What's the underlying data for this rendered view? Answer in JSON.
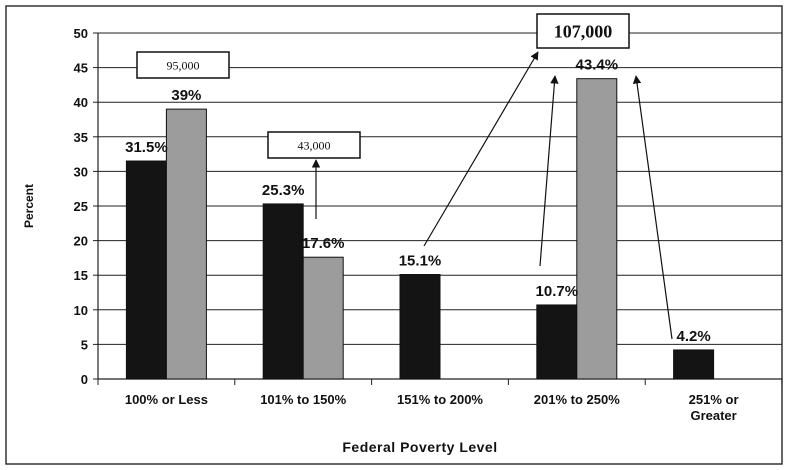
{
  "chart_data": {
    "type": "bar",
    "xlabel": "Federal Poverty Level",
    "ylabel": "Percent",
    "ylim": [
      0,
      50
    ],
    "yticks": [
      0,
      5,
      10,
      15,
      20,
      25,
      30,
      35,
      40,
      45,
      50
    ],
    "grid": true,
    "categories": [
      [
        "100% or Less"
      ],
      [
        "101% to 150%"
      ],
      [
        "151% to 200%"
      ],
      [
        "201% to 250%"
      ],
      [
        "251% or",
        "Greater"
      ]
    ],
    "series": [
      {
        "color": "#141414",
        "values": [
          31.5,
          25.3,
          15.1,
          10.7,
          4.2
        ],
        "labels": [
          "31.5%",
          "25.3%",
          "15.1%",
          "10.7%",
          "4.2%"
        ]
      },
      {
        "color": "#9c9c9c",
        "values": [
          39,
          17.6,
          null,
          43.4,
          null
        ],
        "labels": [
          "39%",
          "17.6%",
          "",
          "43.4%",
          ""
        ]
      }
    ],
    "annotations": [
      {
        "text": "95,000",
        "category": 0
      },
      {
        "text": "43,000",
        "category": 1
      },
      {
        "text": "107,000",
        "category": 3
      }
    ]
  }
}
